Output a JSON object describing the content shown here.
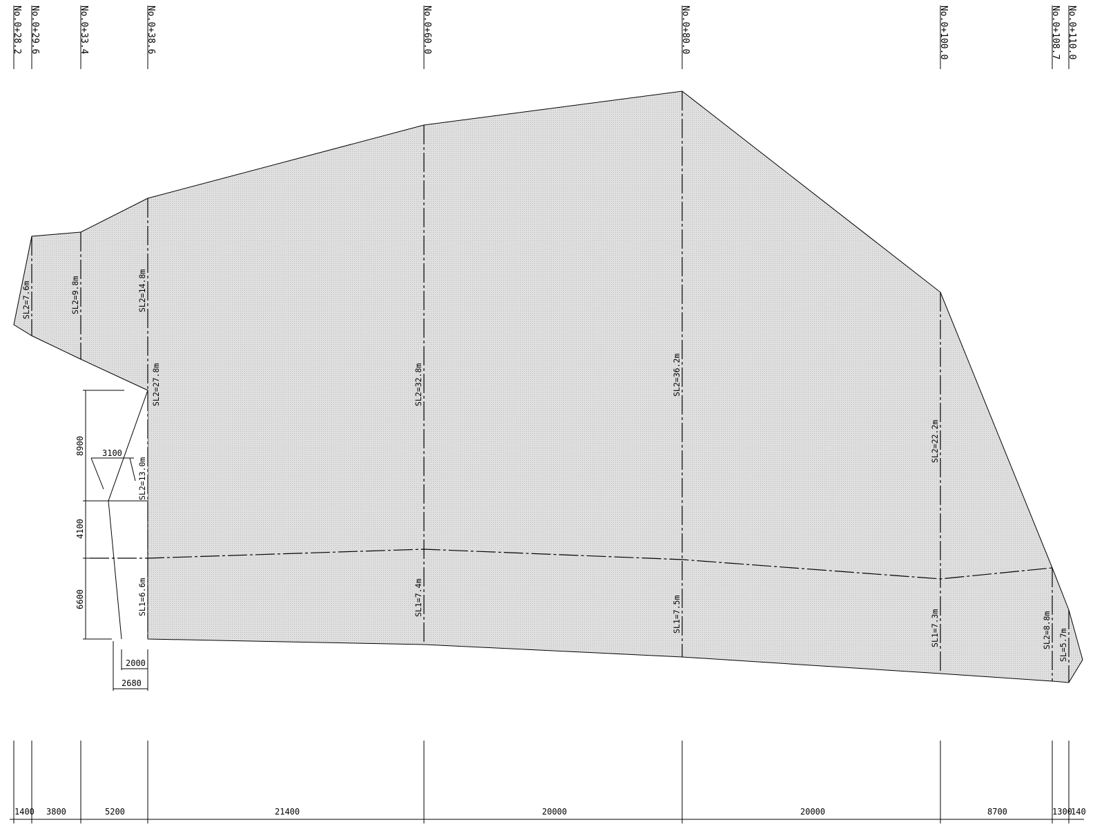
{
  "stations": [
    {
      "label": "No.0+28.2"
    },
    {
      "label": "No.0+29.6"
    },
    {
      "label": "No.0+33.4"
    },
    {
      "label": "No.0+38.6"
    },
    {
      "label": "No.0+60.0"
    },
    {
      "label": "No.0+80.0"
    },
    {
      "label": "No.0+100.0"
    },
    {
      "label": "No.0+108.7"
    },
    {
      "label": "No.0+110.0"
    }
  ],
  "slope_labels": {
    "sl2_s1": "SL2=7.6m",
    "sl2_s2": "SL2=9.8m",
    "sl2_s3": "SL2=14.8m",
    "sl2_s3_lower": "SL2=27.8m",
    "sl2_s4": "SL2=32.8m",
    "sl2_s5": "SL2=36.2m",
    "sl2_s6": "SL2=22.2m",
    "sl2_s7": "SL2=8.8m",
    "sl_s8": "SL=5.7m",
    "sl2_step": "SL2=13.0m",
    "sl1_s3": "SL1=6.6m",
    "sl1_s4": "SL1=7.4m",
    "sl1_s5": "SL1=7.5m",
    "sl1_s6": "SL1=7.3m"
  },
  "detail_dims": {
    "height_upper": "8900",
    "height_mid": "4100",
    "height_lower": "6600",
    "width_step": "3100",
    "width_base_inner": "2000",
    "width_base_outer": "2680"
  },
  "bottom_dims": [
    "1400",
    "3800",
    "5200",
    "21400",
    "20000",
    "20000",
    "8700",
    "1300",
    "140"
  ],
  "colors": {
    "fill": "#d9d9d9",
    "line": "#000000"
  }
}
